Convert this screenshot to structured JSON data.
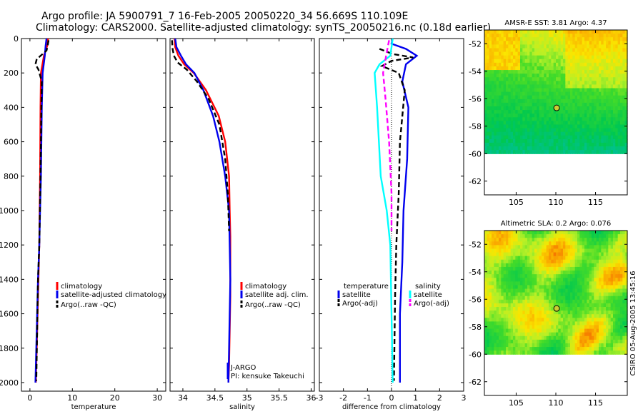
{
  "title_line1": "Argo profile: JA 5900791_7 16-Feb-2005 20050220_34 56.669S 110.109E",
  "title_line2": "Climatology: CARS2000. Satellite-adjusted climatology: synTS_20050216.nc (0.18d earlier)",
  "side_label": "CSIRO 05-Aug-2005 13:45:16",
  "colors": {
    "red": "#ff0000",
    "blue": "#0000ee",
    "black": "#000000",
    "cyan": "#00ffff",
    "magenta": "#ff00ff"
  },
  "chart_data": [
    {
      "type": "line",
      "xlabel": "temperature",
      "ylabel": "",
      "xlim": [
        -2,
        32
      ],
      "ylim": [
        2050,
        0
      ],
      "xticks": [
        0,
        10,
        20,
        30
      ],
      "yticks": [
        0,
        200,
        400,
        600,
        800,
        1000,
        1200,
        1400,
        1600,
        1800,
        2000
      ],
      "legend_position": "lower-right",
      "legend": [
        "climatology",
        "satellite-adjusted climatology",
        "Argo(..raw -QC)"
      ],
      "series": [
        {
          "name": "climatology",
          "color": "red",
          "dash": "solid",
          "x": [
            4.3,
            4.1,
            3.3,
            2.6,
            2.5,
            2.4,
            2.3,
            2.2,
            2.0,
            1.8,
            1.6,
            1.4
          ],
          "y": [
            0,
            40,
            100,
            200,
            400,
            800,
            1000,
            1200,
            1400,
            1600,
            1800,
            2000
          ]
        },
        {
          "name": "satellite-adjusted climatology",
          "color": "blue",
          "dash": "solid",
          "x": [
            3.9,
            3.7,
            3.5,
            3.0,
            2.8,
            2.6,
            2.4,
            2.2,
            1.9,
            1.7,
            1.5,
            1.3
          ],
          "y": [
            0,
            40,
            100,
            200,
            400,
            800,
            1000,
            1200,
            1400,
            1600,
            1800,
            2000
          ]
        },
        {
          "name": "Argo(..raw -QC)",
          "color": "black",
          "dash": "dashed",
          "x": [
            4.4,
            4.2,
            3.9,
            1.6,
            1.3,
            2.0,
            2.8,
            2.7,
            2.5,
            2.2,
            1.9,
            1.7,
            1.5
          ],
          "y": [
            10,
            40,
            70,
            120,
            150,
            180,
            250,
            400,
            800,
            1200,
            1400,
            1700,
            1990
          ]
        }
      ]
    },
    {
      "type": "line",
      "xlabel": "salinity",
      "xlim": [
        33.8,
        36.05
      ],
      "ylim": [
        2050,
        0
      ],
      "xticks": [
        34,
        34.5,
        35,
        35.5,
        36
      ],
      "legend_position": "lower-right",
      "legend": [
        "climatology",
        "satellite adj. clim.",
        "Argo(..raw -QC)"
      ],
      "annotations": [
        "J-ARGO",
        "PI: kensuke Takeuchi"
      ],
      "series": [
        {
          "name": "climatology",
          "color": "red",
          "dash": "solid",
          "x": [
            33.87,
            33.88,
            33.93,
            34.02,
            34.17,
            34.36,
            34.56,
            34.66,
            34.72,
            34.73,
            34.74,
            34.74,
            34.74,
            34.73,
            34.72,
            34.71
          ],
          "y": [
            0,
            50,
            100,
            150,
            200,
            300,
            450,
            600,
            800,
            1000,
            1150,
            1300,
            1500,
            1700,
            1900,
            2000
          ]
        },
        {
          "name": "satellite adj. clim.",
          "color": "blue",
          "dash": "solid",
          "x": [
            33.88,
            33.9,
            33.97,
            34.05,
            34.18,
            34.32,
            34.47,
            34.57,
            34.66,
            34.72,
            34.73,
            34.74,
            34.73,
            34.72,
            34.71
          ],
          "y": [
            0,
            50,
            100,
            150,
            200,
            300,
            450,
            600,
            800,
            1000,
            1200,
            1400,
            1600,
            1800,
            2000
          ]
        },
        {
          "name": "Argo(..raw -QC)",
          "color": "black",
          "dash": "dashed",
          "x": [
            33.83,
            33.84,
            33.86,
            33.92,
            34.06,
            34.22,
            34.4,
            34.57,
            34.66,
            34.7,
            34.71,
            34.72
          ],
          "y": [
            10,
            60,
            100,
            140,
            180,
            250,
            350,
            500,
            700,
            900,
            1000,
            1120
          ]
        }
      ]
    },
    {
      "type": "line",
      "xlabel": "difference from climatology",
      "xlim": [
        -3,
        3
      ],
      "ylim": [
        2050,
        0
      ],
      "xticks": [
        -3,
        -2,
        -1,
        0,
        1,
        2,
        3
      ],
      "legend_position": "lower",
      "legend": [
        "temperature",
        "satellite",
        "Argo(-adj)",
        "salinity",
        "satellite",
        "Argo(-adj)"
      ],
      "series": [
        {
          "name": "temperature satellite",
          "color": "blue",
          "dash": "solid",
          "x": [
            0.05,
            0.0,
            0.6,
            1.05,
            0.6,
            0.45,
            0.7,
            0.65,
            0.5,
            0.45,
            0.35,
            0.35,
            0.35
          ],
          "y": [
            0,
            30,
            60,
            100,
            150,
            250,
            400,
            700,
            1000,
            1300,
            1600,
            1800,
            2000
          ]
        },
        {
          "name": "temperature Argo(-adj)",
          "color": "black",
          "dash": "dashed",
          "x": [
            -0.5,
            0.05,
            0.9,
            0.0,
            -0.4,
            0.3,
            0.55,
            0.35,
            0.3,
            0.2,
            0.15,
            0.1
          ],
          "y": [
            60,
            90,
            110,
            130,
            160,
            200,
            300,
            600,
            900,
            1200,
            1500,
            1990
          ]
        },
        {
          "name": "salinity satellite",
          "color": "cyan",
          "dash": "solid",
          "x": [
            0.05,
            -0.05,
            -0.5,
            -0.7,
            -0.6,
            -0.45,
            -0.2,
            -0.05,
            0.0,
            0.05
          ],
          "y": [
            0,
            100,
            150,
            200,
            400,
            800,
            1000,
            1200,
            1600,
            2000
          ]
        },
        {
          "name": "salinity Argo(-adj)",
          "color": "magenta",
          "dash": "dashed",
          "x": [
            -0.1,
            -0.2,
            -0.35,
            -0.25,
            -0.1,
            0.0,
            0.0,
            0.0
          ],
          "y": [
            10,
            80,
            200,
            350,
            600,
            900,
            1100,
            1120
          ]
        }
      ]
    },
    {
      "type": "heatmap",
      "title": "AMSR-E SST: 3.81 Argo: 4.37",
      "xlim": [
        101,
        119
      ],
      "ylim": [
        -63,
        -51
      ],
      "xticks": [
        105,
        110,
        115
      ],
      "yticks": [
        -52,
        -54,
        -56,
        -58,
        -60,
        -62
      ],
      "data_extent_lat": [
        -60,
        -51
      ],
      "marker": [
        110.1,
        -56.67
      ]
    },
    {
      "type": "heatmap",
      "title": "Altimetric SLA: 0.2 Argo: 0.076",
      "xlim": [
        101,
        119
      ],
      "ylim": [
        -63,
        -51
      ],
      "xticks": [
        105,
        110,
        115
      ],
      "yticks": [
        -52,
        -54,
        -56,
        -58,
        -60,
        -62
      ],
      "data_extent_lat": [
        -60,
        -51
      ],
      "marker": [
        110.1,
        -56.67
      ]
    }
  ]
}
